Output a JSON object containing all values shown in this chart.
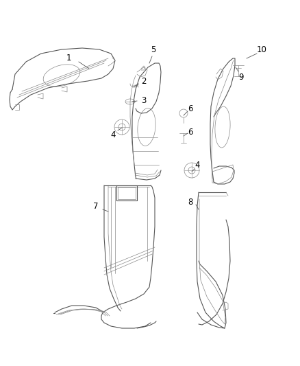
{
  "background_color": "#ffffff",
  "fig_width": 4.38,
  "fig_height": 5.33,
  "dpi": 100,
  "line_color": "#888888",
  "line_color_dark": "#555555",
  "text_color": "#000000",
  "font_size": 8.5
}
